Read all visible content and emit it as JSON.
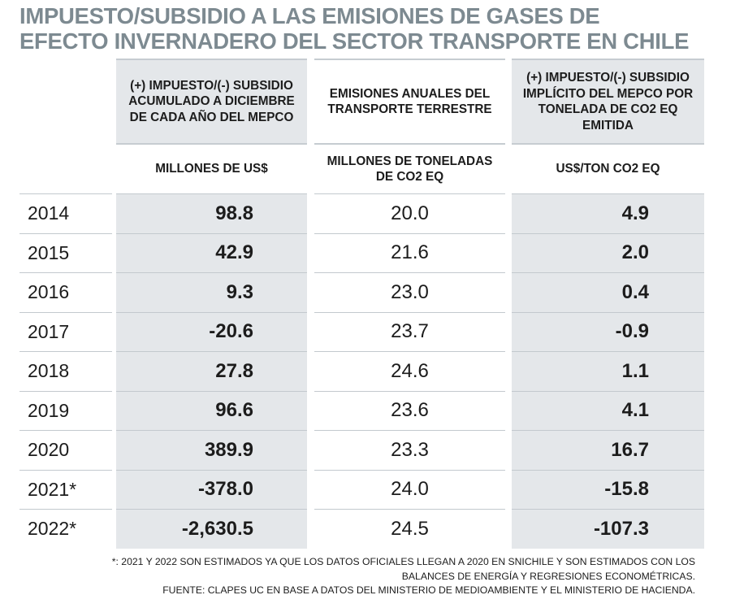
{
  "title_line1": "IMPUESTO/SUBSIDIO A LAS EMISIONES DE GASES DE",
  "title_line2": "EFECTO INVERNADERO DEL SECTOR TRANSPORTE EN CHILE",
  "columns": [
    {
      "header": "(+) IMPUESTO/(-) SUBSIDIO ACUMULADO A DICIEMBRE DE CADA AÑO DEL MEPCO",
      "unit": "MILLONES DE US$"
    },
    {
      "header": "EMISIONES ANUALES DEL TRANSPORTE TERRESTRE",
      "unit": "MILLONES DE TONELADAS DE CO2 EQ"
    },
    {
      "header": "(+) IMPUESTO/(-) SUBSIDIO IMPLÍCITO DEL MEPCO POR TONELADA DE CO2 EQ EMITIDA",
      "unit": "US$/TON CO2 EQ"
    }
  ],
  "chart_data": {
    "type": "table",
    "title": "IMPUESTO/SUBSIDIO A LAS EMISIONES DE GASES DE EFECTO INVERNADERO DEL SECTOR TRANSPORTE EN CHILE",
    "rows": [
      {
        "year": "2014",
        "mepco": "98.8",
        "emisiones": "20.0",
        "por_ton": "4.9"
      },
      {
        "year": "2015",
        "mepco": "42.9",
        "emisiones": "21.6",
        "por_ton": "2.0"
      },
      {
        "year": "2016",
        "mepco": "9.3",
        "emisiones": "23.0",
        "por_ton": "0.4"
      },
      {
        "year": "2017",
        "mepco": "-20.6",
        "emisiones": "23.7",
        "por_ton": "-0.9"
      },
      {
        "year": "2018",
        "mepco": "27.8",
        "emisiones": "24.6",
        "por_ton": "1.1"
      },
      {
        "year": "2019",
        "mepco": "96.6",
        "emisiones": "23.6",
        "por_ton": "4.1"
      },
      {
        "year": "2020",
        "mepco": "389.9",
        "emisiones": "23.3",
        "por_ton": "16.7"
      },
      {
        "year": "2021*",
        "mepco": "-378.0",
        "emisiones": "24.0",
        "por_ton": "-15.8"
      },
      {
        "year": "2022*",
        "mepco": "-2,630.5",
        "emisiones": "24.5",
        "por_ton": "-107.3"
      }
    ]
  },
  "footnote_line1": "*: 2021 Y 2022 SON ESTIMADOS YA QUE LOS DATOS OFICIALES LLEGAN A 2020 EN SNICHILE Y SON ESTIMADOS CON LOS",
  "footnote_line2": "BALANCES DE ENERGÍA Y REGRESIONES ECONOMÉTRICAS.",
  "footnote_line3": "FUENTE: CLAPES UC EN BASE A DATOS DEL MINISTERIO DE MEDIOAMBIENTE Y EL MINISTERIO DE HACIENDA.",
  "colors": {
    "title": "#7d8a91",
    "shade": "#e4e7ea",
    "rule": "#c3c9ce"
  }
}
